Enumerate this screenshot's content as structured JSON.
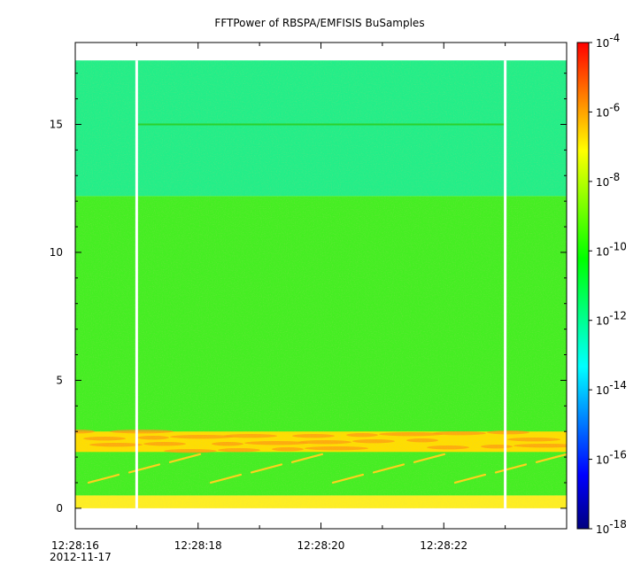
{
  "chart_data": {
    "type": "heatmap",
    "title": "FFTPower of RBSPA/EMFISIS  BuSamples",
    "xlabel": "",
    "ylabel": "",
    "x_tick_labels": [
      "12:28:16",
      "12:28:18",
      "12:28:20",
      "12:28:22"
    ],
    "x_date_label": "2012-11-17",
    "xlim_seconds": [
      16.0,
      24.0
    ],
    "y_tick_labels": [
      "0",
      "5",
      "10",
      "15"
    ],
    "y_ticks": [
      0,
      5,
      10,
      15
    ],
    "ylim": [
      -0.8,
      18.2
    ],
    "data_y_extent": [
      0,
      17.5
    ],
    "data_x_extent_seconds": [
      16.0,
      24.0
    ],
    "colorbar": {
      "scale": "log",
      "range": [
        1e-18,
        0.0001
      ],
      "tick_mantissa": [
        "10",
        "10",
        "10",
        "10",
        "10",
        "10",
        "10",
        "10"
      ],
      "tick_exponents": [
        "-4",
        "-6",
        "-8",
        "-10",
        "-12",
        "-14",
        "-16",
        "-18"
      ],
      "colormap": [
        "#00007f",
        "#0000ff",
        "#007fff",
        "#00ffff",
        "#00ff7f",
        "#00ff00",
        "#7fff00",
        "#ffff00",
        "#ff7f00",
        "#ff0000"
      ]
    },
    "gaps_seconds": [
      17.0,
      23.0
    ],
    "bands": [
      {
        "y_from": 12.2,
        "y_to": 17.5,
        "level": "1e-12",
        "color": "#22ee88"
      },
      {
        "y_from": 0.5,
        "y_to": 12.2,
        "level": "1e-10",
        "color": "#44ee22"
      },
      {
        "y_from": 2.2,
        "y_to": 3.0,
        "level": "1e-8",
        "color": "#ffdd00"
      },
      {
        "y_from": 0.0,
        "y_to": 0.5,
        "level": "1e-8",
        "color": "#ffee22"
      }
    ],
    "line_feature": {
      "y": 15.0,
      "x_from_seconds": 17.0,
      "x_to_seconds": 23.0,
      "color": "#2cd02c"
    }
  }
}
